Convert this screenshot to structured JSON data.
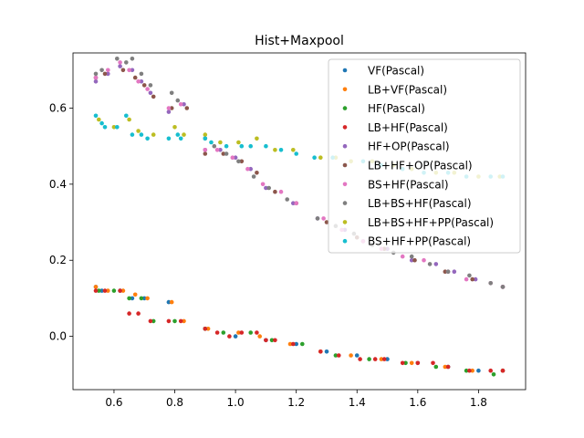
{
  "chart_data": {
    "type": "scatter",
    "title": "Hist+Maxpool",
    "xlabel": "",
    "ylabel": "",
    "xlim": [
      0.465,
      1.955
    ],
    "ylim": [
      -0.14,
      0.745
    ],
    "xticks": [
      "0.6",
      "0.8",
      "1.0",
      "1.2",
      "1.4",
      "1.6",
      "1.8"
    ],
    "xtick_values": [
      0.6,
      0.8,
      1.0,
      1.2,
      1.4,
      1.6,
      1.8
    ],
    "yticks": [
      "0.0",
      "0.2",
      "0.4",
      "0.6"
    ],
    "ytick_values": [
      0.0,
      0.2,
      0.4,
      0.6
    ],
    "grid": false,
    "legend_position": "top-right",
    "series": [
      {
        "name": "VF(Pascal)",
        "color": "#1f77b4",
        "points": [
          [
            0.54,
            0.13
          ],
          [
            0.56,
            0.12
          ],
          [
            0.62,
            0.12
          ],
          [
            0.66,
            0.1
          ],
          [
            0.7,
            0.1
          ],
          [
            0.78,
            0.09
          ],
          [
            0.9,
            0.02
          ],
          [
            1.0,
            0.0
          ],
          [
            1.1,
            -0.01
          ],
          [
            1.2,
            -0.02
          ],
          [
            1.3,
            -0.04
          ],
          [
            1.4,
            -0.05
          ],
          [
            1.5,
            -0.06
          ],
          [
            1.6,
            -0.07
          ],
          [
            1.7,
            -0.08
          ],
          [
            1.8,
            -0.09
          ],
          [
            1.88,
            -0.09
          ]
        ]
      },
      {
        "name": "LB+VF(Pascal)",
        "color": "#ff7f0e",
        "points": [
          [
            0.54,
            0.13
          ],
          [
            0.58,
            0.12
          ],
          [
            0.63,
            0.12
          ],
          [
            0.67,
            0.11
          ],
          [
            0.71,
            0.1
          ],
          [
            0.79,
            0.09
          ],
          [
            0.83,
            0.04
          ],
          [
            0.91,
            0.02
          ],
          [
            1.01,
            0.01
          ],
          [
            1.08,
            0.0
          ],
          [
            1.18,
            -0.02
          ],
          [
            1.28,
            -0.04
          ],
          [
            1.38,
            -0.05
          ],
          [
            1.48,
            -0.06
          ],
          [
            1.58,
            -0.07
          ],
          [
            1.69,
            -0.08
          ],
          [
            1.78,
            -0.09
          ],
          [
            1.88,
            -0.09
          ]
        ]
      },
      {
        "name": "HF(Pascal)",
        "color": "#2ca02c",
        "points": [
          [
            0.55,
            0.12
          ],
          [
            0.6,
            0.12
          ],
          [
            0.65,
            0.1
          ],
          [
            0.69,
            0.1
          ],
          [
            0.73,
            0.04
          ],
          [
            0.8,
            0.04
          ],
          [
            0.9,
            0.02
          ],
          [
            0.96,
            0.01
          ],
          [
            1.05,
            0.01
          ],
          [
            1.12,
            -0.01
          ],
          [
            1.22,
            -0.02
          ],
          [
            1.33,
            -0.05
          ],
          [
            1.44,
            -0.06
          ],
          [
            1.56,
            -0.07
          ],
          [
            1.66,
            -0.08
          ],
          [
            1.76,
            -0.09
          ],
          [
            1.85,
            -0.1
          ]
        ]
      },
      {
        "name": "LB+HF(Pascal)",
        "color": "#d62728",
        "points": [
          [
            0.54,
            0.12
          ],
          [
            0.57,
            0.12
          ],
          [
            0.62,
            0.12
          ],
          [
            0.65,
            0.06
          ],
          [
            0.68,
            0.06
          ],
          [
            0.72,
            0.04
          ],
          [
            0.78,
            0.04
          ],
          [
            0.82,
            0.04
          ],
          [
            0.9,
            0.02
          ],
          [
            0.94,
            0.01
          ],
          [
            0.98,
            0.0
          ],
          [
            1.02,
            0.01
          ],
          [
            1.07,
            0.01
          ],
          [
            1.1,
            -0.01
          ],
          [
            1.13,
            -0.01
          ],
          [
            1.19,
            -0.02
          ],
          [
            1.28,
            -0.04
          ],
          [
            1.34,
            -0.05
          ],
          [
            1.41,
            -0.06
          ],
          [
            1.46,
            -0.06
          ],
          [
            1.49,
            -0.06
          ],
          [
            1.55,
            -0.07
          ],
          [
            1.6,
            -0.07
          ],
          [
            1.65,
            -0.07
          ],
          [
            1.7,
            -0.08
          ],
          [
            1.77,
            -0.09
          ],
          [
            1.84,
            -0.09
          ],
          [
            1.88,
            -0.09
          ]
        ]
      },
      {
        "name": "HF+OP(Pascal)",
        "color": "#9467bd",
        "points": [
          [
            0.54,
            0.67
          ],
          [
            0.58,
            0.69
          ],
          [
            0.62,
            0.71
          ],
          [
            0.66,
            0.7
          ],
          [
            0.69,
            0.67
          ],
          [
            0.72,
            0.64
          ],
          [
            0.78,
            0.59
          ],
          [
            0.83,
            0.61
          ],
          [
            0.9,
            0.49
          ],
          [
            0.95,
            0.49
          ],
          [
            1.0,
            0.47
          ],
          [
            1.05,
            0.44
          ],
          [
            1.1,
            0.39
          ],
          [
            1.19,
            0.35
          ],
          [
            1.27,
            0.31
          ],
          [
            1.36,
            0.28
          ],
          [
            1.42,
            0.25
          ],
          [
            1.5,
            0.23
          ],
          [
            1.58,
            0.2
          ],
          [
            1.66,
            0.19
          ],
          [
            1.72,
            0.17
          ],
          [
            1.79,
            0.15
          ],
          [
            1.88,
            0.13
          ]
        ]
      },
      {
        "name": "LB+HF+OP(Pascal)",
        "color": "#8c564b",
        "points": [
          [
            0.54,
            0.68
          ],
          [
            0.57,
            0.69
          ],
          [
            0.63,
            0.7
          ],
          [
            0.67,
            0.68
          ],
          [
            0.7,
            0.66
          ],
          [
            0.73,
            0.63
          ],
          [
            0.79,
            0.6
          ],
          [
            0.84,
            0.6
          ],
          [
            0.9,
            0.48
          ],
          [
            0.96,
            0.48
          ],
          [
            1.02,
            0.46
          ],
          [
            1.07,
            0.43
          ],
          [
            1.13,
            0.38
          ],
          [
            1.2,
            0.35
          ],
          [
            1.3,
            0.3
          ],
          [
            1.4,
            0.26
          ],
          [
            1.49,
            0.23
          ],
          [
            1.59,
            0.2
          ],
          [
            1.69,
            0.17
          ],
          [
            1.78,
            0.15
          ],
          [
            1.88,
            0.13
          ]
        ]
      },
      {
        "name": "BS+HF(Pascal)",
        "color": "#e377c2",
        "points": [
          [
            0.54,
            0.68
          ],
          [
            0.58,
            0.7
          ],
          [
            0.62,
            0.72
          ],
          [
            0.65,
            0.7
          ],
          [
            0.68,
            0.67
          ],
          [
            0.71,
            0.65
          ],
          [
            0.78,
            0.6
          ],
          [
            0.82,
            0.61
          ],
          [
            0.9,
            0.49
          ],
          [
            0.94,
            0.49
          ],
          [
            0.99,
            0.47
          ],
          [
            1.04,
            0.44
          ],
          [
            1.09,
            0.4
          ],
          [
            1.15,
            0.38
          ],
          [
            1.2,
            0.35
          ],
          [
            1.29,
            0.31
          ],
          [
            1.35,
            0.28
          ],
          [
            1.42,
            0.25
          ],
          [
            1.48,
            0.23
          ],
          [
            1.55,
            0.21
          ],
          [
            1.62,
            0.2
          ],
          [
            1.7,
            0.17
          ],
          [
            1.76,
            0.15
          ],
          [
            1.84,
            0.14
          ],
          [
            1.88,
            0.13
          ]
        ]
      },
      {
        "name": "LB+BS+HF(Pascal)",
        "color": "#7f7f7f",
        "points": [
          [
            0.54,
            0.69
          ],
          [
            0.56,
            0.7
          ],
          [
            0.61,
            0.73
          ],
          [
            0.64,
            0.72
          ],
          [
            0.66,
            0.73
          ],
          [
            0.69,
            0.69
          ],
          [
            0.72,
            0.66
          ],
          [
            0.79,
            0.64
          ],
          [
            0.81,
            0.62
          ],
          [
            0.9,
            0.52
          ],
          [
            0.93,
            0.5
          ],
          [
            0.97,
            0.48
          ],
          [
            1.01,
            0.46
          ],
          [
            1.06,
            0.42
          ],
          [
            1.11,
            0.39
          ],
          [
            1.17,
            0.36
          ],
          [
            1.27,
            0.31
          ],
          [
            1.33,
            0.29
          ],
          [
            1.39,
            0.27
          ],
          [
            1.45,
            0.24
          ],
          [
            1.52,
            0.22
          ],
          [
            1.58,
            0.21
          ],
          [
            1.64,
            0.19
          ],
          [
            1.7,
            0.17
          ],
          [
            1.77,
            0.16
          ],
          [
            1.84,
            0.14
          ],
          [
            1.88,
            0.13
          ]
        ]
      },
      {
        "name": "LB+BS+HF+PP(Pascal)",
        "color": "#bcbd22",
        "points": [
          [
            0.55,
            0.57
          ],
          [
            0.6,
            0.55
          ],
          [
            0.65,
            0.57
          ],
          [
            0.68,
            0.54
          ],
          [
            0.73,
            0.53
          ],
          [
            0.8,
            0.55
          ],
          [
            0.83,
            0.53
          ],
          [
            0.9,
            0.53
          ],
          [
            0.95,
            0.51
          ],
          [
            1.01,
            0.51
          ],
          [
            1.07,
            0.52
          ],
          [
            1.13,
            0.49
          ],
          [
            1.19,
            0.49
          ],
          [
            1.28,
            0.47
          ],
          [
            1.33,
            0.47
          ],
          [
            1.38,
            0.46
          ],
          [
            1.45,
            0.46
          ],
          [
            1.52,
            0.45
          ],
          [
            1.58,
            0.44
          ],
          [
            1.66,
            0.43
          ],
          [
            1.72,
            0.43
          ],
          [
            1.8,
            0.42
          ],
          [
            1.87,
            0.42
          ]
        ]
      },
      {
        "name": "BS+HF+PP(Pascal)",
        "color": "#17becf",
        "points": [
          [
            0.54,
            0.58
          ],
          [
            0.56,
            0.56
          ],
          [
            0.57,
            0.55
          ],
          [
            0.61,
            0.55
          ],
          [
            0.64,
            0.58
          ],
          [
            0.66,
            0.53
          ],
          [
            0.69,
            0.53
          ],
          [
            0.71,
            0.52
          ],
          [
            0.78,
            0.52
          ],
          [
            0.81,
            0.53
          ],
          [
            0.82,
            0.52
          ],
          [
            0.9,
            0.52
          ],
          [
            0.92,
            0.51
          ],
          [
            0.97,
            0.5
          ],
          [
            1.02,
            0.5
          ],
          [
            1.05,
            0.5
          ],
          [
            1.1,
            0.5
          ],
          [
            1.15,
            0.49
          ],
          [
            1.2,
            0.48
          ],
          [
            1.26,
            0.47
          ],
          [
            1.32,
            0.47
          ],
          [
            1.36,
            0.45
          ],
          [
            1.42,
            0.46
          ],
          [
            1.48,
            0.45
          ],
          [
            1.55,
            0.44
          ],
          [
            1.62,
            0.43
          ],
          [
            1.7,
            0.43
          ],
          [
            1.76,
            0.42
          ],
          [
            1.84,
            0.42
          ],
          [
            1.88,
            0.42
          ]
        ]
      }
    ]
  }
}
